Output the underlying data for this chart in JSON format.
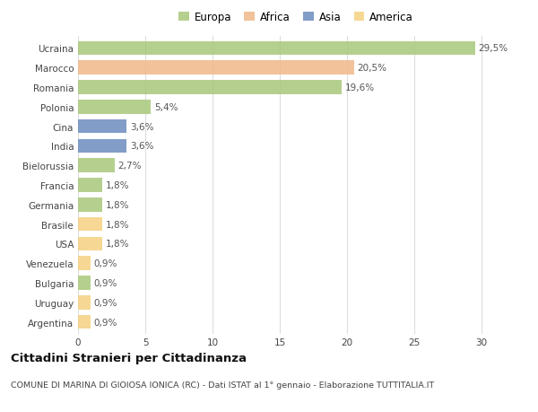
{
  "categories": [
    "Ucraina",
    "Marocco",
    "Romania",
    "Polonia",
    "Cina",
    "India",
    "Bielorussia",
    "Francia",
    "Germania",
    "Brasile",
    "USA",
    "Venezuela",
    "Bulgaria",
    "Uruguay",
    "Argentina"
  ],
  "values": [
    29.5,
    20.5,
    19.6,
    5.4,
    3.6,
    3.6,
    2.7,
    1.8,
    1.8,
    1.8,
    1.8,
    0.9,
    0.9,
    0.9,
    0.9
  ],
  "labels": [
    "29,5%",
    "20,5%",
    "19,6%",
    "5,4%",
    "3,6%",
    "3,6%",
    "2,7%",
    "1,8%",
    "1,8%",
    "1,8%",
    "1,8%",
    "0,9%",
    "0,9%",
    "0,9%",
    "0,9%"
  ],
  "colors": [
    "#a8c87a",
    "#f0b88a",
    "#a8c87a",
    "#a8c87a",
    "#6b8cbf",
    "#6b8cbf",
    "#a8c87a",
    "#a8c87a",
    "#a8c87a",
    "#f5d080",
    "#f5d080",
    "#f5d080",
    "#a8c87a",
    "#f5d080",
    "#f5d080"
  ],
  "legend_labels": [
    "Europa",
    "Africa",
    "Asia",
    "America"
  ],
  "legend_colors": [
    "#a8c87a",
    "#f0b88a",
    "#6b8cbf",
    "#f5d080"
  ],
  "title": "Cittadini Stranieri per Cittadinanza",
  "subtitle": "COMUNE DI MARINA DI GIOIOSA IONICA (RC) - Dati ISTAT al 1° gennaio - Elaborazione TUTTITALIA.IT",
  "xlim": [
    0,
    32
  ],
  "xticks": [
    0,
    5,
    10,
    15,
    20,
    25,
    30
  ],
  "background_color": "#ffffff",
  "grid_color": "#dddddd",
  "bar_height": 0.72,
  "label_fontsize": 7.5,
  "tick_fontsize": 7.5,
  "title_fontsize": 9.5,
  "subtitle_fontsize": 6.8,
  "legend_fontsize": 8.5
}
